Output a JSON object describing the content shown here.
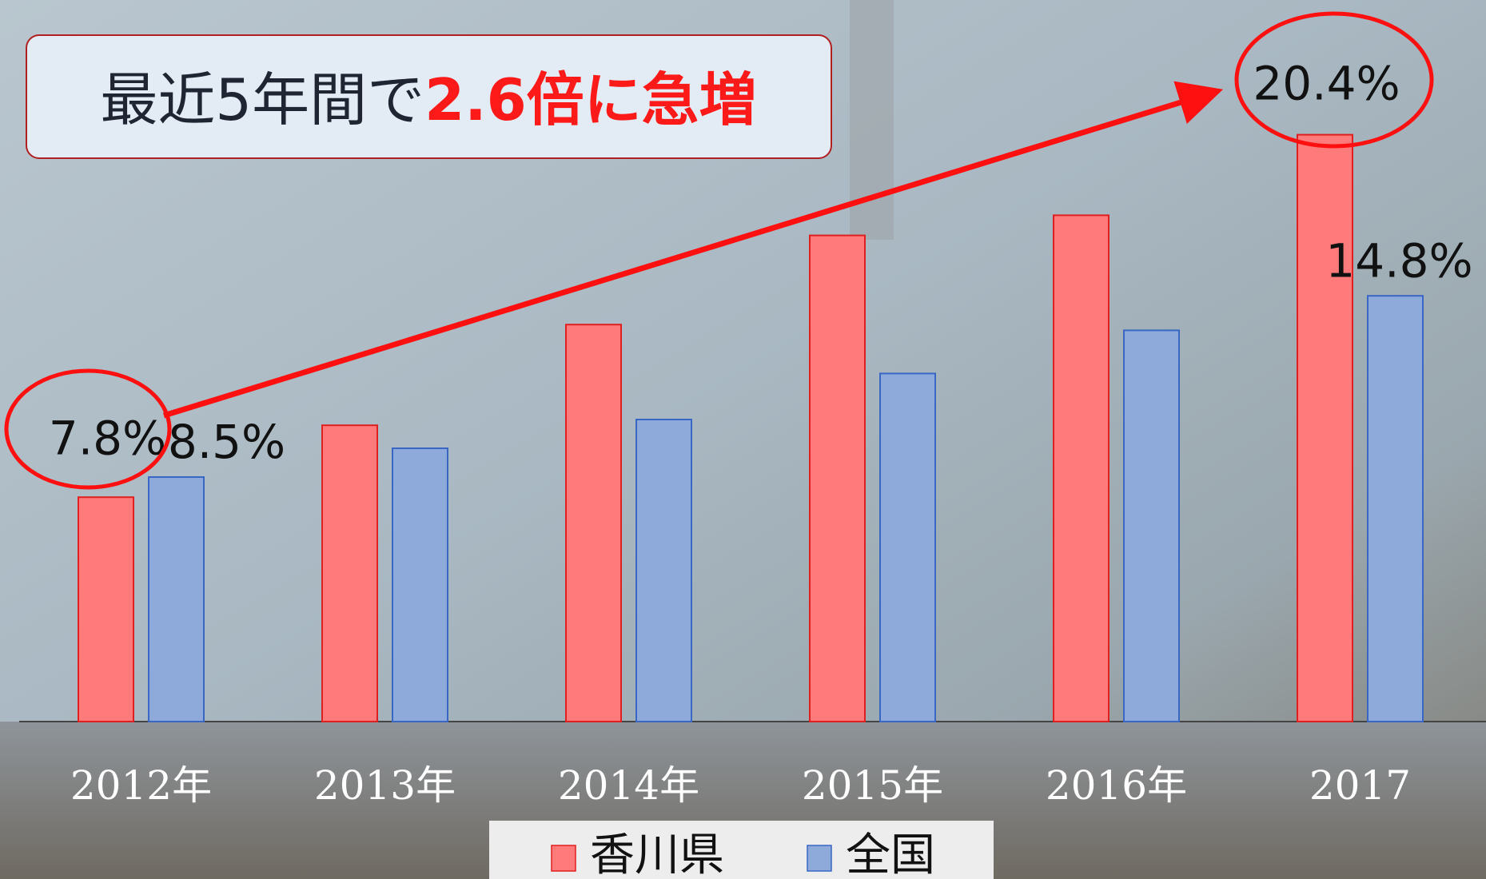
{
  "chart_data": {
    "type": "bar",
    "annotation": {
      "text": "最近5年間で",
      "highlight": "2.6倍に急増"
    },
    "categories": [
      "2012年",
      "2013年",
      "2014年",
      "2015年",
      "2016年",
      "2017"
    ],
    "series": [
      {
        "name": "香川県",
        "color": "#ff7a7a",
        "values": [
          7.8,
          10.3,
          13.8,
          16.9,
          17.6,
          20.4
        ],
        "value_labels": [
          "7.8%",
          null,
          null,
          null,
          null,
          "20.4%"
        ]
      },
      {
        "name": "全国",
        "color": "#8eaadb",
        "values": [
          8.5,
          9.5,
          10.5,
          12.1,
          13.6,
          14.8
        ],
        "value_labels": [
          "8.5%",
          null,
          null,
          null,
          null,
          "14.8%"
        ]
      }
    ]
  }
}
